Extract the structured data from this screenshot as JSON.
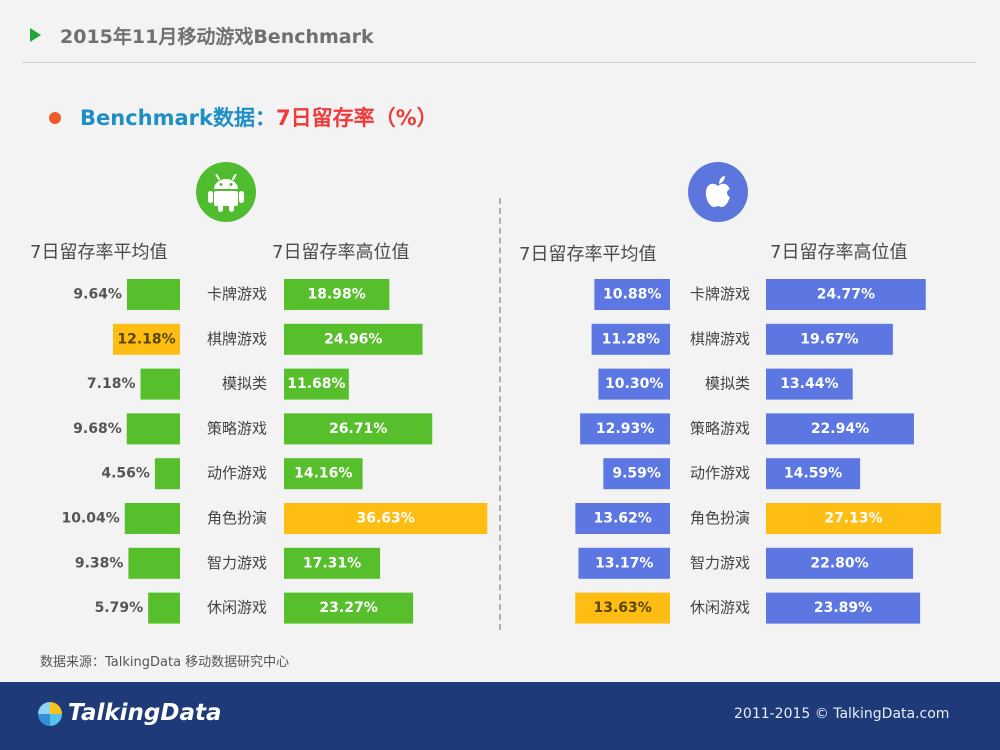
{
  "header": {
    "title": "2015年11月移动游戏Benchmark"
  },
  "subheading": {
    "prefix": "Benchmark数据：",
    "highlight": "7日留存率（%）"
  },
  "chart_data": {
    "type": "bar",
    "categories": [
      "卡牌游戏",
      "棋牌游戏",
      "模拟类",
      "策略游戏",
      "动作游戏",
      "角色扮演",
      "智力游戏",
      "休闲游戏"
    ],
    "panels": [
      {
        "platform": "Android",
        "icon": "android-icon",
        "avg_label": "7日留存率平均值",
        "high_label": "7日留存率高位值",
        "avg": [
          9.64,
          12.18,
          7.18,
          9.68,
          4.56,
          10.04,
          9.38,
          5.79
        ],
        "high": [
          18.98,
          24.96,
          11.68,
          26.71,
          14.16,
          36.63,
          17.31,
          23.27
        ]
      },
      {
        "platform": "iOS",
        "icon": "apple-icon",
        "avg_label": "7日留存率平均值",
        "high_label": "7日留存率高位值",
        "avg": [
          10.88,
          11.28,
          10.3,
          12.93,
          9.59,
          13.62,
          13.17,
          13.63
        ],
        "high": [
          24.77,
          19.67,
          13.44,
          22.94,
          14.59,
          27.13,
          22.8,
          23.89
        ]
      }
    ],
    "colors": {
      "android": "#56bf2b",
      "ios": "#5c77e2",
      "highlight": "#fdbd13"
    },
    "value_suffix": "%"
  },
  "source": {
    "text": "数据来源：TalkingData 移动数据研究中心"
  },
  "footer": {
    "brand": "TalkingData",
    "copyright": "2011-2015 © TalkingData.com"
  }
}
